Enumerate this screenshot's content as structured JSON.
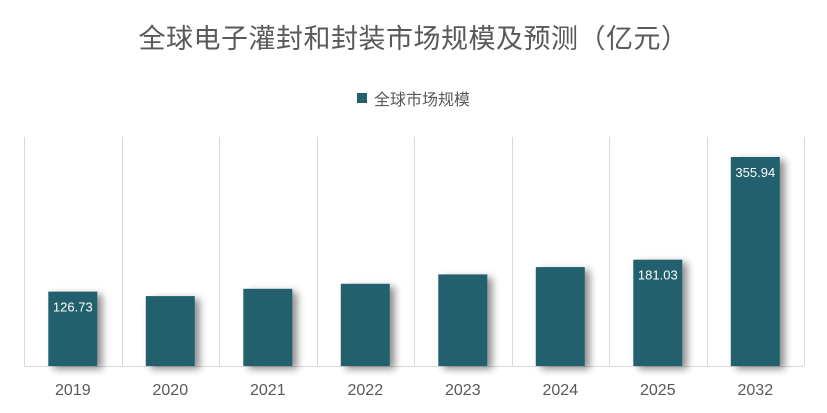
{
  "chart_data": {
    "type": "bar",
    "title": "全球电子灌封和封装市场规模及预测（亿元）",
    "categories": [
      "2019",
      "2020",
      "2021",
      "2022",
      "2023",
      "2024",
      "2025",
      "2032"
    ],
    "series": [
      {
        "name": "全球市场规模",
        "values": [
          126.73,
          119.0,
          131.5,
          140.0,
          156.0,
          168.5,
          181.03,
          355.94
        ],
        "data_labels": [
          "126.73",
          "",
          "",
          "",
          "",
          "",
          "181.03",
          "355.94"
        ]
      }
    ],
    "ylim": [
      0,
      390
    ],
    "grid": "vertical separators",
    "legend": "top-center",
    "colors": {
      "bar": "#23606E",
      "text": "#595959",
      "grid": "#D9D9D9"
    }
  }
}
